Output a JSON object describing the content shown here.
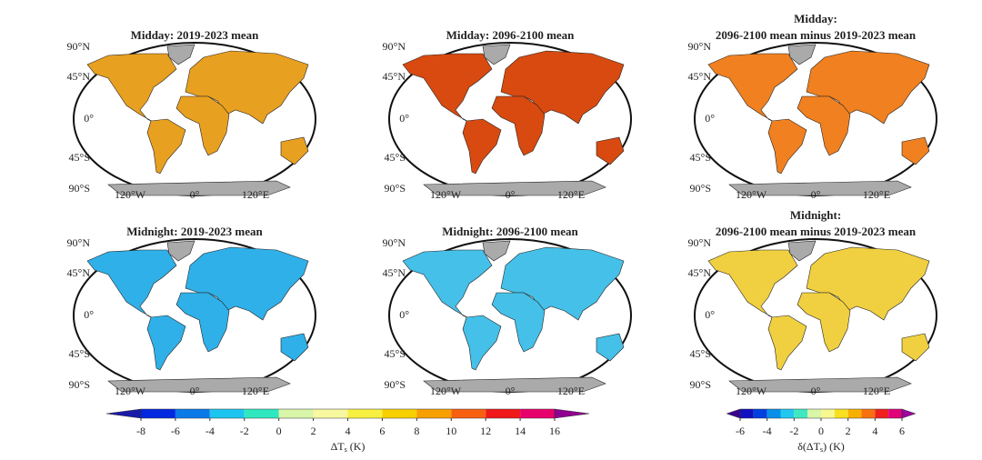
{
  "panels": [
    {
      "title": [
        "Midday: 2019-2023 mean"
      ]
    },
    {
      "title": [
        "Midday: 2096-2100 mean"
      ]
    },
    {
      "title": [
        "Midday:",
        "2096-2100 mean minus 2019-2023 mean"
      ]
    },
    {
      "title": [
        "Midnight: 2019-2023 mean"
      ]
    },
    {
      "title": [
        "Midnight: 2096-2100 mean"
      ]
    },
    {
      "title": [
        "Midnight:",
        "2096-2100 mean minus 2019-2023 mean"
      ]
    }
  ],
  "lat_labels": [
    "90°N",
    "45°N",
    "0°",
    "45°S",
    "90°S"
  ],
  "lon_labels": [
    "120°W",
    "0°",
    "120°E"
  ],
  "colorbars": [
    {
      "levels": [
        -8,
        -6,
        -4,
        -2,
        0,
        2,
        4,
        6,
        8,
        10,
        12,
        14,
        16
      ],
      "ticks": [
        -8,
        -6,
        -4,
        -2,
        0,
        2,
        4,
        6,
        8,
        10,
        12,
        14,
        16
      ],
      "colors": [
        "#1a1aa8",
        "#0028e0",
        "#0a7ae8",
        "#1cc4f0",
        "#30e8c0",
        "#d8f5a8",
        "#f8f8a0",
        "#f8f040",
        "#f8d000",
        "#f8a000",
        "#f86010",
        "#f01818",
        "#e8006c",
        "#900090"
      ],
      "label": {
        "main": "ΔT",
        "sub": "s",
        "end": " (K)"
      }
    },
    {
      "levels": [
        -6,
        -5,
        -4,
        -3,
        -2,
        -1,
        0,
        1,
        2,
        3,
        4,
        5,
        6
      ],
      "ticks": [
        -6,
        -4,
        -2,
        0,
        2,
        4,
        6
      ],
      "colors": [
        "#3a0090",
        "#1010c0",
        "#0040e0",
        "#0890e8",
        "#20c8f0",
        "#40e8c0",
        "#d8f5a8",
        "#f8f890",
        "#f8e020",
        "#f8b000",
        "#f87010",
        "#f02020",
        "#e0007a",
        "#a000a0"
      ],
      "label": {
        "main": "δ(ΔT",
        "sub": "s",
        "end": ") (K)"
      }
    }
  ]
}
